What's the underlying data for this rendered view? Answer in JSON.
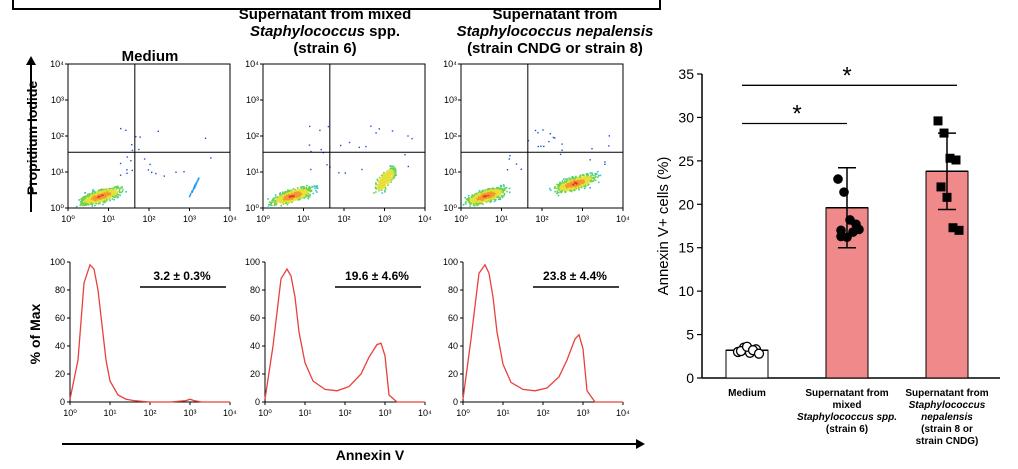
{
  "headers": {
    "medium": "Medium",
    "mixed_line1": "Supernatant from mixed",
    "mixed_line2_italic": "Staphylococcus",
    "mixed_line2_rest": " spp.",
    "mixed_line3": "(strain 6)",
    "nep_line1": "Supernatant from",
    "nep_line2": "Staphylococcus nepalensis",
    "nep_line3": "(strain CNDG or strain 8)"
  },
  "flow_ylabel": "Propidium Iodide",
  "hist_ylabel": "% of Max",
  "hist_xlabel": "Annexin V",
  "flow_ticks": [
    "10⁰",
    "10¹",
    "10²",
    "10³",
    "10⁴"
  ],
  "hist_yticks": [
    "0",
    "20",
    "40",
    "60",
    "80",
    "100"
  ],
  "hist_stats": [
    "3.2 ± 0.3%",
    "19.6 ± 4.6%",
    "23.8 ± 4.4%"
  ],
  "colors": {
    "hist_line": "#e8413b",
    "bar_fill": "#f08a8a",
    "bar_edge": "#000000"
  },
  "chart_data": [
    {
      "type": "bar",
      "ylabel": "Annexin V+ cells (%)",
      "ylim": [
        0,
        35
      ],
      "yticks": [
        0,
        5,
        10,
        15,
        20,
        25,
        30,
        35
      ],
      "categories": [
        "Medium",
        "Supernatant from mixed Staphylococcus spp. (strain 6)",
        "Supernatant from Staphylococcus nepalensis (strain 8 or strain CNDG)"
      ],
      "category_lines": [
        [
          {
            "t": "Medium",
            "i": false
          }
        ],
        [
          {
            "t": "Supernatant from",
            "i": false
          },
          {
            "t": "mixed",
            "i": false
          },
          {
            "t": "Staphylococcus spp.",
            "i": true
          },
          {
            "t": "(strain 6)",
            "i": false
          }
        ],
        [
          {
            "t": "Supernatant from",
            "i": false
          },
          {
            "t": "Staphylococcus",
            "i": true
          },
          {
            "t": "nepalensis",
            "i": true
          },
          {
            "t": "(strain 8 or",
            "i": false
          },
          {
            "t": "strain CNDG)",
            "i": false
          }
        ]
      ],
      "values": [
        3.2,
        19.6,
        23.8
      ],
      "errors": [
        0.3,
        4.6,
        4.4
      ],
      "points": [
        [
          3.0,
          3.5,
          2.9,
          3.3,
          3.1,
          3.6,
          3.2,
          2.8
        ],
        [
          22.9,
          21.4,
          18.2,
          17.7,
          17.0,
          16.2,
          16.8,
          17.1,
          16.3
        ],
        [
          29.6,
          28.2,
          25.3,
          25.1,
          22.0,
          20.8,
          17.3,
          17.0
        ]
      ],
      "significance": [
        {
          "from": 0,
          "to": 1,
          "label": "*"
        },
        {
          "from": 0,
          "to": 2,
          "label": "*"
        }
      ]
    },
    {
      "type": "scatter",
      "title": "Medium",
      "xticks": [
        "10⁰",
        "10¹",
        "10²",
        "10³",
        "10⁴"
      ],
      "yticks": [
        "10⁰",
        "10¹",
        "10²",
        "10³",
        "10⁴"
      ],
      "populations": [
        {
          "cx": 0.8,
          "cy": 0.35,
          "size": "large"
        },
        {
          "cx": 3.1,
          "cy": 0.6,
          "size": "small"
        }
      ]
    },
    {
      "type": "scatter",
      "title": "Supernatant from mixed Staphylococcus spp. (strain 6)",
      "xticks": [
        "10⁰",
        "10¹",
        "10²",
        "10³",
        "10⁴"
      ],
      "yticks": [
        "10⁰",
        "10¹",
        "10²",
        "10³",
        "10⁴"
      ],
      "populations": [
        {
          "cx": 0.7,
          "cy": 0.35,
          "size": "large"
        },
        {
          "cx": 3.0,
          "cy": 0.8,
          "size": "medium"
        }
      ]
    },
    {
      "type": "scatter",
      "title": "Supernatant from Staphylococcus nepalensis (strain CNDG or strain 8)",
      "xticks": [
        "10⁰",
        "10¹",
        "10²",
        "10³",
        "10⁴"
      ],
      "yticks": [
        "10⁰",
        "10¹",
        "10²",
        "10³",
        "10⁴"
      ],
      "populations": [
        {
          "cx": 0.6,
          "cy": 0.35,
          "size": "large"
        },
        {
          "cx": 2.8,
          "cy": 0.7,
          "size": "large"
        }
      ]
    },
    {
      "type": "line",
      "xlabel": "Annexin V",
      "ylabel": "% of Max",
      "ylim": [
        0,
        100
      ],
      "annotation": "3.2 ± 0.3%",
      "x": [
        0,
        0.2,
        0.35,
        0.5,
        0.6,
        0.7,
        0.8,
        0.9,
        1.0,
        1.2,
        1.4,
        1.6,
        2.0,
        2.5,
        2.9,
        3.0,
        3.1,
        3.3,
        3.6,
        4.0
      ],
      "y": [
        2,
        30,
        85,
        98,
        95,
        80,
        55,
        30,
        15,
        5,
        2,
        1,
        0,
        0,
        1,
        2,
        1,
        0,
        0,
        0
      ]
    },
    {
      "type": "line",
      "xlabel": "Annexin V",
      "ylabel": "% of Max",
      "ylim": [
        0,
        100
      ],
      "annotation": "19.6 ± 4.6%",
      "x": [
        0,
        0.2,
        0.4,
        0.55,
        0.65,
        0.75,
        0.85,
        1.0,
        1.2,
        1.5,
        1.8,
        2.1,
        2.4,
        2.6,
        2.8,
        2.9,
        3.0,
        3.1,
        3.3,
        4.0
      ],
      "y": [
        2,
        40,
        88,
        95,
        90,
        75,
        50,
        28,
        15,
        9,
        8,
        11,
        20,
        32,
        41,
        42,
        33,
        5,
        0,
        0
      ]
    },
    {
      "type": "line",
      "xlabel": "Annexin V",
      "ylabel": "% of Max",
      "ylim": [
        0,
        100
      ],
      "annotation": "23.8 ± 4.4%",
      "x": [
        0,
        0.2,
        0.4,
        0.55,
        0.65,
        0.75,
        0.85,
        1.0,
        1.2,
        1.5,
        1.8,
        2.1,
        2.4,
        2.6,
        2.8,
        2.9,
        3.0,
        3.1,
        3.3,
        4.0
      ],
      "y": [
        2,
        45,
        92,
        98,
        92,
        75,
        50,
        27,
        14,
        9,
        8,
        10,
        18,
        30,
        45,
        48,
        38,
        8,
        0,
        0
      ]
    }
  ]
}
